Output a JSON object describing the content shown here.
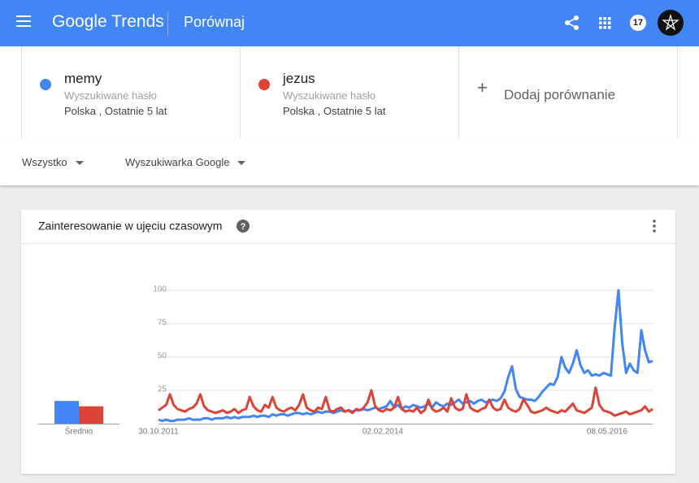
{
  "header": {
    "logo": "Google Trends",
    "title": "Porównaj",
    "notifications": "17"
  },
  "terms": [
    {
      "type": "Wyszukiwane hasło",
      "scope": "Polska , Ostatnie 5 lat"
    },
    {
      "type": "Wyszukiwane hasło",
      "scope": "Polska , Ostatnie 5 lat"
    }
  ],
  "add_comparison": "Dodaj porównanie",
  "filters": [
    "Wszystko",
    "Wyszukiwarka Google"
  ],
  "chart_data": {
    "type": "line",
    "title": "Zainteresowanie w ujęciu czasowym",
    "average_label": "Średnio",
    "categories": [
      "30.10.2011",
      null,
      null,
      null,
      null,
      null,
      null,
      null,
      null,
      null,
      null,
      null,
      null,
      null,
      null,
      null,
      null,
      null,
      null,
      null,
      null,
      null,
      null,
      null,
      null,
      null,
      null,
      null,
      null,
      null,
      null,
      null,
      null,
      null,
      null,
      null,
      null,
      null,
      null,
      null,
      null,
      null,
      null,
      null,
      null,
      null,
      null,
      null,
      null,
      null,
      null,
      null,
      null,
      null,
      null,
      null,
      null,
      null,
      null,
      "02.02.2014",
      null,
      null,
      null,
      null,
      null,
      null,
      null,
      null,
      null,
      null,
      null,
      null,
      null,
      null,
      null,
      null,
      null,
      null,
      null,
      null,
      null,
      null,
      null,
      null,
      null,
      null,
      null,
      null,
      null,
      null,
      null,
      null,
      null,
      null,
      null,
      null,
      null,
      null,
      null,
      null,
      null,
      null,
      null,
      null,
      null,
      null,
      null,
      null,
      null,
      null,
      null,
      null,
      null,
      null,
      null,
      null,
      null,
      null,
      "08.05.2016",
      null,
      null,
      null,
      null,
      null,
      null,
      null,
      null,
      null,
      null,
      null,
      null
    ],
    "series": [
      {
        "name": "memy",
        "color": "#4285f4",
        "average": 17,
        "values": [
          3,
          2,
          3,
          2,
          2,
          3,
          3,
          3,
          4,
          3,
          3,
          3,
          4,
          4,
          3,
          4,
          4,
          4,
          5,
          4,
          5,
          4,
          5,
          5,
          5,
          6,
          5,
          6,
          6,
          5,
          7,
          6,
          7,
          7,
          6,
          7,
          8,
          8,
          7,
          8,
          7,
          8,
          9,
          8,
          9,
          9,
          8,
          9,
          10,
          9,
          10,
          9,
          10,
          10,
          11,
          10,
          11,
          12,
          11,
          12,
          13,
          17,
          12,
          14,
          11,
          13,
          12,
          14,
          13,
          12,
          13,
          15,
          12,
          16,
          14,
          13,
          15,
          14,
          16,
          18,
          15,
          16,
          17,
          15,
          17,
          18,
          16,
          17,
          18,
          17,
          19,
          24,
          35,
          43,
          26,
          20,
          19,
          18,
          18,
          17,
          20,
          24,
          27,
          30,
          29,
          35,
          50,
          42,
          38,
          45,
          55,
          44,
          38,
          40,
          36,
          37,
          36,
          38,
          37,
          36,
          72,
          100,
          60,
          38,
          45,
          40,
          38,
          70,
          55,
          46,
          47
        ]
      },
      {
        "name": "jezus",
        "color": "#db4437",
        "average": 13,
        "values": [
          10,
          12,
          14,
          22,
          14,
          11,
          10,
          9,
          11,
          12,
          15,
          22,
          13,
          10,
          9,
          8,
          9,
          10,
          8,
          9,
          11,
          8,
          10,
          11,
          20,
          13,
          10,
          9,
          14,
          12,
          20,
          12,
          10,
          9,
          11,
          12,
          10,
          14,
          22,
          12,
          10,
          9,
          12,
          11,
          20,
          10,
          9,
          11,
          12,
          9,
          10,
          8,
          11,
          10,
          12,
          16,
          25,
          13,
          10,
          9,
          11,
          10,
          12,
          20,
          11,
          9,
          10,
          9,
          12,
          8,
          10,
          18,
          11,
          9,
          10,
          12,
          9,
          19,
          12,
          10,
          11,
          22,
          12,
          10,
          9,
          11,
          12,
          18,
          12,
          10,
          11,
          18,
          12,
          10,
          9,
          11,
          18,
          14,
          9,
          8,
          9,
          10,
          12,
          10,
          9,
          8,
          10,
          9,
          12,
          15,
          10,
          9,
          8,
          10,
          12,
          27,
          14,
          10,
          9,
          8,
          6,
          7,
          8,
          9,
          7,
          8,
          9,
          10,
          13,
          9,
          11
        ]
      }
    ],
    "ylim": [
      0,
      100
    ],
    "yticks": [
      25,
      50,
      75,
      100
    ],
    "grid": true
  }
}
